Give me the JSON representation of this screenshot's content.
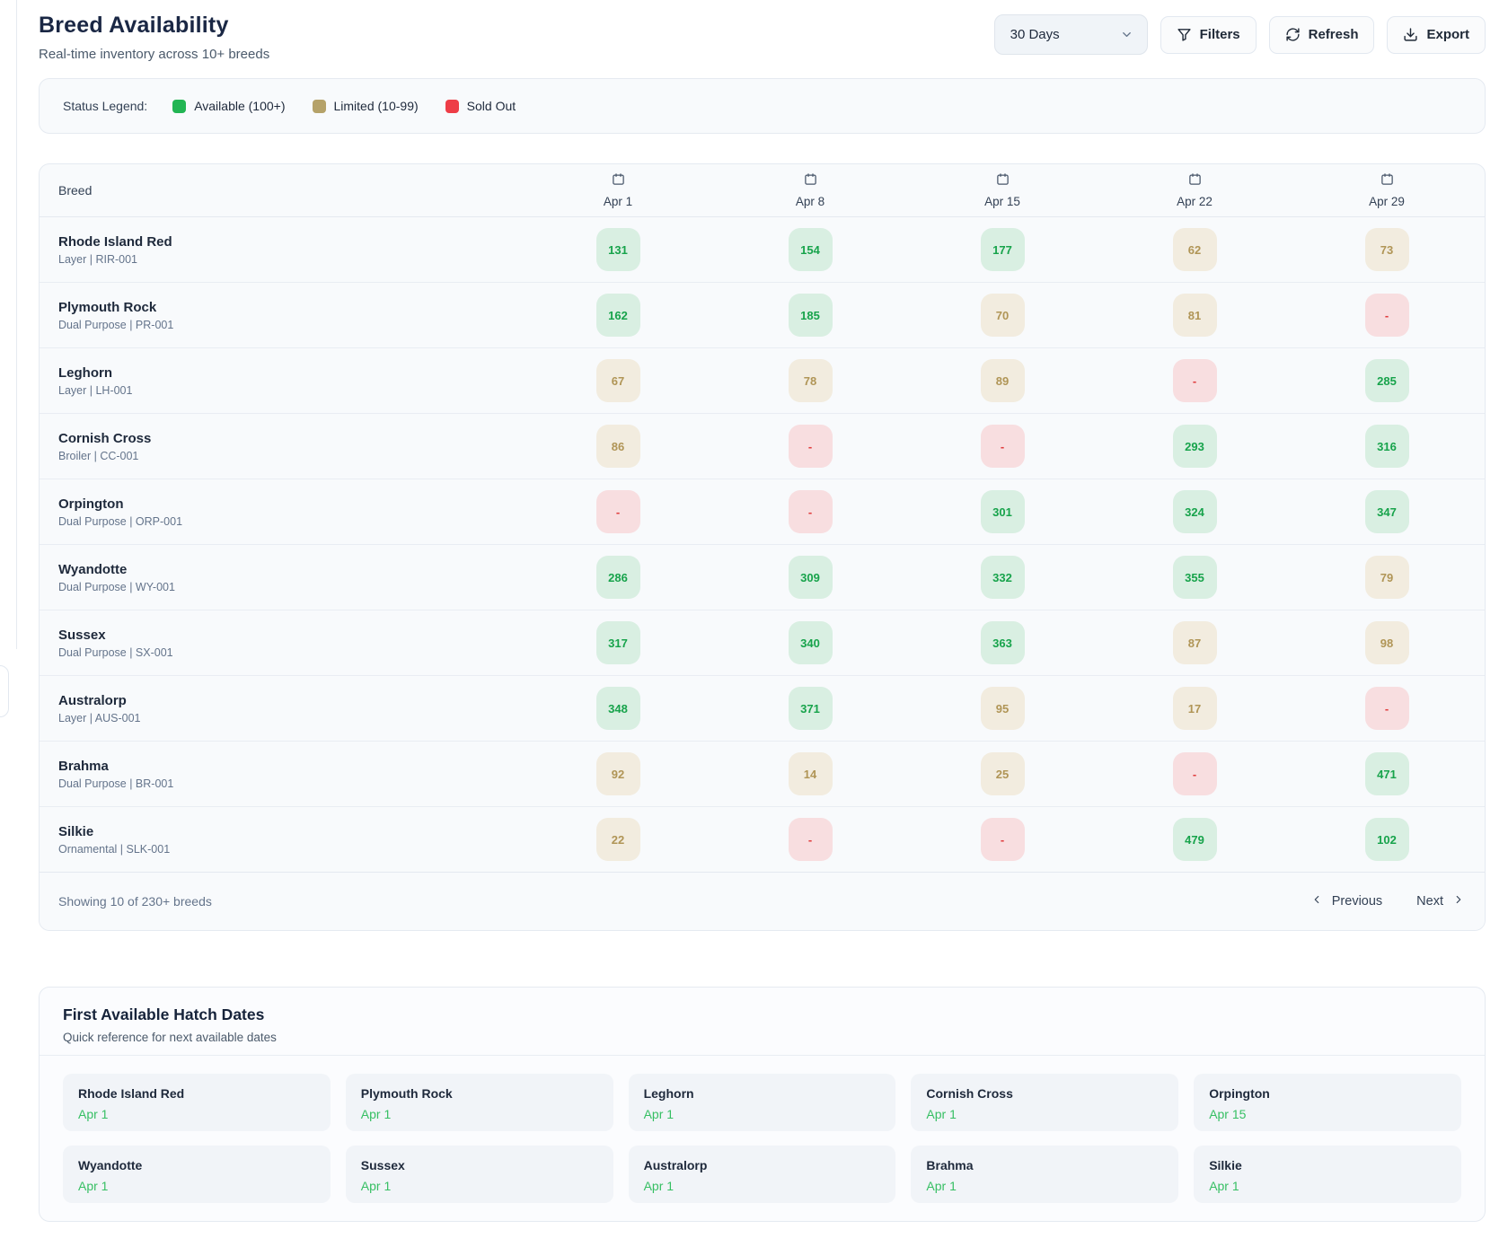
{
  "page": {
    "title": "Breed Availability",
    "subtitle": "Real-time inventory across 10+ breeds"
  },
  "controls": {
    "range_select_value": "30 Days",
    "filters_label": "Filters",
    "refresh_label": "Refresh",
    "export_label": "Export"
  },
  "legend": {
    "label": "Status Legend:",
    "items": [
      {
        "label": "Available (100+)",
        "status": "available",
        "color": "#22b553"
      },
      {
        "label": "Limited (10-99)",
        "status": "limited",
        "color": "#b5a269"
      },
      {
        "label": "Sold Out",
        "status": "soldout",
        "color": "#ee3d47"
      }
    ]
  },
  "status_colors": {
    "available": {
      "bg": "#d9efe2",
      "text": "#17a34b"
    },
    "limited": {
      "bg": "#f2ecdf",
      "text": "#b09556"
    },
    "soldout": {
      "bg": "#f8dee0",
      "text": "#e03e3e"
    }
  },
  "table": {
    "breed_header": "Breed",
    "date_columns": [
      "Apr 1",
      "Apr 8",
      "Apr 15",
      "Apr 22",
      "Apr 29"
    ],
    "rows": [
      {
        "name": "Rhode Island Red",
        "meta": "Layer | RIR-001",
        "cells": [
          {
            "value": "131",
            "status": "available"
          },
          {
            "value": "154",
            "status": "available"
          },
          {
            "value": "177",
            "status": "available"
          },
          {
            "value": "62",
            "status": "limited"
          },
          {
            "value": "73",
            "status": "limited"
          }
        ]
      },
      {
        "name": "Plymouth Rock",
        "meta": "Dual Purpose | PR-001",
        "cells": [
          {
            "value": "162",
            "status": "available"
          },
          {
            "value": "185",
            "status": "available"
          },
          {
            "value": "70",
            "status": "limited"
          },
          {
            "value": "81",
            "status": "limited"
          },
          {
            "value": "-",
            "status": "soldout"
          }
        ]
      },
      {
        "name": "Leghorn",
        "meta": "Layer | LH-001",
        "cells": [
          {
            "value": "67",
            "status": "limited"
          },
          {
            "value": "78",
            "status": "limited"
          },
          {
            "value": "89",
            "status": "limited"
          },
          {
            "value": "-",
            "status": "soldout"
          },
          {
            "value": "285",
            "status": "available"
          }
        ]
      },
      {
        "name": "Cornish Cross",
        "meta": "Broiler | CC-001",
        "cells": [
          {
            "value": "86",
            "status": "limited"
          },
          {
            "value": "-",
            "status": "soldout"
          },
          {
            "value": "-",
            "status": "soldout"
          },
          {
            "value": "293",
            "status": "available"
          },
          {
            "value": "316",
            "status": "available"
          }
        ]
      },
      {
        "name": "Orpington",
        "meta": "Dual Purpose | ORP-001",
        "cells": [
          {
            "value": "-",
            "status": "soldout"
          },
          {
            "value": "-",
            "status": "soldout"
          },
          {
            "value": "301",
            "status": "available"
          },
          {
            "value": "324",
            "status": "available"
          },
          {
            "value": "347",
            "status": "available"
          }
        ]
      },
      {
        "name": "Wyandotte",
        "meta": "Dual Purpose | WY-001",
        "cells": [
          {
            "value": "286",
            "status": "available"
          },
          {
            "value": "309",
            "status": "available"
          },
          {
            "value": "332",
            "status": "available"
          },
          {
            "value": "355",
            "status": "available"
          },
          {
            "value": "79",
            "status": "limited"
          }
        ]
      },
      {
        "name": "Sussex",
        "meta": "Dual Purpose | SX-001",
        "cells": [
          {
            "value": "317",
            "status": "available"
          },
          {
            "value": "340",
            "status": "available"
          },
          {
            "value": "363",
            "status": "available"
          },
          {
            "value": "87",
            "status": "limited"
          },
          {
            "value": "98",
            "status": "limited"
          }
        ]
      },
      {
        "name": "Australorp",
        "meta": "Layer | AUS-001",
        "cells": [
          {
            "value": "348",
            "status": "available"
          },
          {
            "value": "371",
            "status": "available"
          },
          {
            "value": "95",
            "status": "limited"
          },
          {
            "value": "17",
            "status": "limited"
          },
          {
            "value": "-",
            "status": "soldout"
          }
        ]
      },
      {
        "name": "Brahma",
        "meta": "Dual Purpose | BR-001",
        "cells": [
          {
            "value": "92",
            "status": "limited"
          },
          {
            "value": "14",
            "status": "limited"
          },
          {
            "value": "25",
            "status": "limited"
          },
          {
            "value": "-",
            "status": "soldout"
          },
          {
            "value": "471",
            "status": "available"
          }
        ]
      },
      {
        "name": "Silkie",
        "meta": "Ornamental | SLK-001",
        "cells": [
          {
            "value": "22",
            "status": "limited"
          },
          {
            "value": "-",
            "status": "soldout"
          },
          {
            "value": "-",
            "status": "soldout"
          },
          {
            "value": "479",
            "status": "available"
          },
          {
            "value": "102",
            "status": "available"
          }
        ]
      }
    ],
    "footer": {
      "summary": "Showing 10 of 230+ breeds",
      "previous_label": "Previous",
      "next_label": "Next"
    }
  },
  "hatch_dates": {
    "title": "First Available Hatch Dates",
    "subtitle": "Quick reference for next available dates",
    "date_color": "#36bf63",
    "cards": [
      {
        "breed": "Rhode Island Red",
        "date": "Apr 1"
      },
      {
        "breed": "Plymouth Rock",
        "date": "Apr 1"
      },
      {
        "breed": "Leghorn",
        "date": "Apr 1"
      },
      {
        "breed": "Cornish Cross",
        "date": "Apr 1"
      },
      {
        "breed": "Orpington",
        "date": "Apr 15"
      },
      {
        "breed": "Wyandotte",
        "date": "Apr 1"
      },
      {
        "breed": "Sussex",
        "date": "Apr 1"
      },
      {
        "breed": "Australorp",
        "date": "Apr 1"
      },
      {
        "breed": "Brahma",
        "date": "Apr 1"
      },
      {
        "breed": "Silkie",
        "date": "Apr 1"
      }
    ]
  }
}
